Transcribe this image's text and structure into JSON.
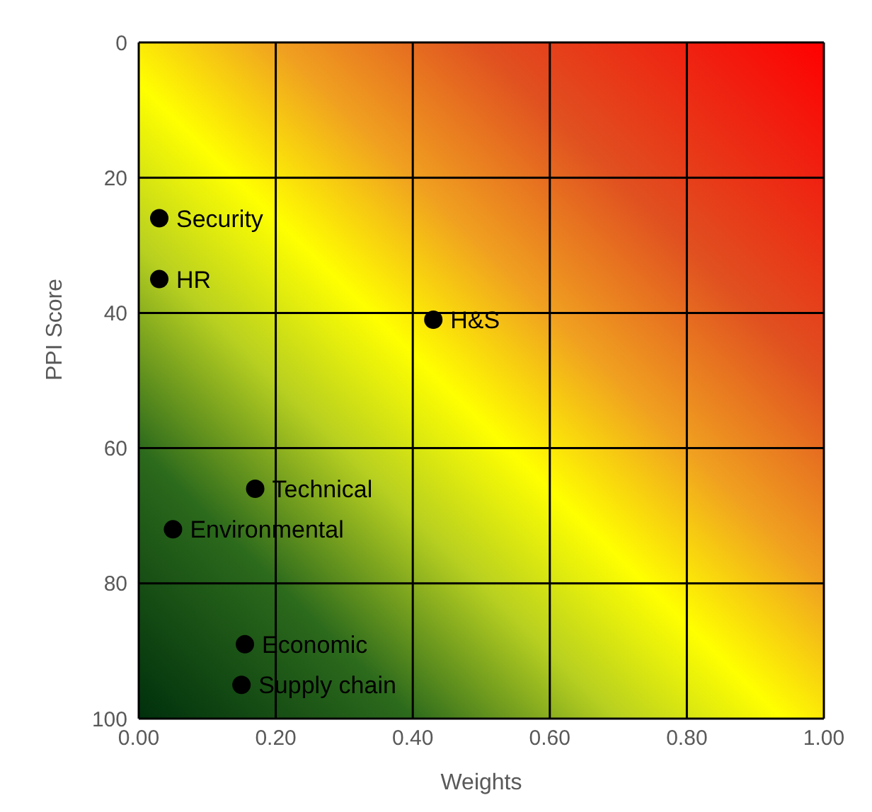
{
  "chart_data": {
    "type": "scatter",
    "xlabel": "Weights",
    "ylabel": "PPI Score",
    "x": [
      0.03,
      0.03,
      0.43,
      0.17,
      0.05,
      0.155,
      0.15
    ],
    "values": [
      26,
      35,
      41,
      66,
      72,
      89,
      95
    ],
    "color": "#000000",
    "marker": "circle",
    "grid": true,
    "xlim": [
      0,
      1
    ],
    "xticks": [
      {
        "value": 0,
        "label": "0.00"
      },
      {
        "value": 0.2,
        "label": "0.20"
      },
      {
        "value": 0.4,
        "label": "0.40"
      },
      {
        "value": 0.6,
        "label": "0.60"
      },
      {
        "value": 0.8,
        "label": "0.80"
      },
      {
        "value": 1,
        "label": "1.00"
      }
    ],
    "ylim": [
      100,
      0
    ],
    "yticks": [
      0,
      20,
      40,
      60,
      80,
      100
    ],
    "annotations": [
      {
        "text": "Security",
        "x": 0.03,
        "y": 26
      },
      {
        "text": "HR",
        "x": 0.03,
        "y": 35
      },
      {
        "text": "H&S",
        "x": 0.43,
        "y": 41
      },
      {
        "text": "Technical",
        "x": 0.17,
        "y": 66
      },
      {
        "text": "Environmental",
        "x": 0.05,
        "y": 72
      },
      {
        "text": "Economic",
        "x": 0.155,
        "y": 89
      },
      {
        "text": "Supply chain",
        "x": 0.15,
        "y": 95
      }
    ]
  }
}
